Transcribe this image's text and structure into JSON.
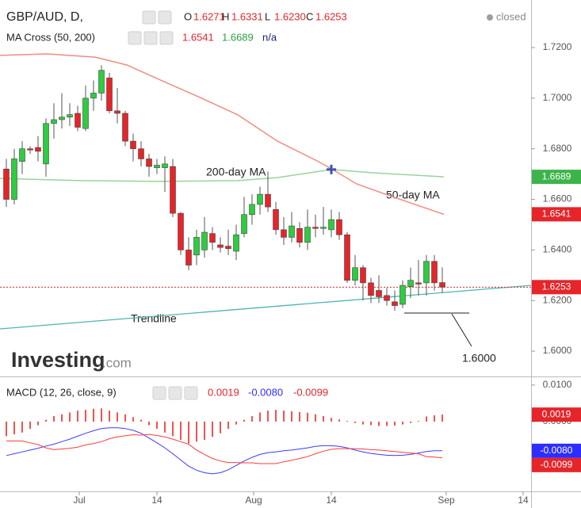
{
  "chart_data": [
    {
      "type": "candlestick",
      "title": "GBP/AUD, D,",
      "ohlc_labels": [
        "O",
        "H",
        "L",
        "C"
      ],
      "ohlc_values": [
        "1.6271",
        "1.6331",
        "1.6230",
        "1.6253"
      ],
      "status": "closed",
      "indicator": "MA Cross (50, 200)",
      "indicator_values": [
        "1.6541",
        "1.6689",
        "n/a"
      ],
      "logo": [
        "Investing",
        ".com"
      ],
      "up_color": "#2ecc40",
      "down_color": "#e5252a",
      "open": [
        1.672,
        1.66,
        1.675,
        1.68,
        1.6805,
        1.674,
        1.69,
        1.6915,
        1.6925,
        1.694,
        1.688,
        1.7,
        1.702,
        1.708,
        1.695,
        1.694,
        1.683,
        1.68,
        1.676,
        1.6725,
        1.6725,
        1.673,
        1.6545,
        1.64,
        1.638,
        1.64,
        1.6465,
        1.642,
        1.6415,
        1.6395,
        1.6465,
        1.654,
        1.658,
        1.662,
        1.656,
        1.648,
        1.645,
        1.6485,
        1.643,
        1.649,
        1.6485,
        1.648,
        1.652,
        1.646,
        1.628,
        1.633,
        1.627,
        1.624,
        1.622,
        1.6195,
        1.6185,
        1.6255,
        1.627,
        1.627,
        1.6355,
        1.6271
      ],
      "high": [
        1.676,
        1.68,
        1.683,
        1.681,
        1.685,
        1.692,
        1.698,
        1.702,
        1.698,
        1.697,
        1.705,
        1.707,
        1.713,
        1.71,
        1.704,
        1.695,
        1.686,
        1.683,
        1.678,
        1.676,
        1.677,
        1.676,
        1.655,
        1.645,
        1.648,
        1.653,
        1.649,
        1.645,
        1.648,
        1.65,
        1.661,
        1.662,
        1.665,
        1.671,
        1.659,
        1.653,
        1.655,
        1.651,
        1.656,
        1.654,
        1.657,
        1.656,
        1.655,
        1.647,
        1.638,
        1.634,
        1.629,
        1.63,
        1.625,
        1.624,
        1.628,
        1.633,
        1.636,
        1.638,
        1.638,
        1.6331
      ],
      "low": [
        1.657,
        1.658,
        1.67,
        1.678,
        1.675,
        1.669,
        1.684,
        1.688,
        1.689,
        1.687,
        1.687,
        1.695,
        1.699,
        1.694,
        1.69,
        1.681,
        1.675,
        1.673,
        1.669,
        1.67,
        1.663,
        1.653,
        1.638,
        1.632,
        1.634,
        1.637,
        1.64,
        1.639,
        1.638,
        1.636,
        1.645,
        1.65,
        1.654,
        1.655,
        1.646,
        1.642,
        1.643,
        1.641,
        1.64,
        1.645,
        1.646,
        1.645,
        1.644,
        1.627,
        1.626,
        1.62,
        1.619,
        1.619,
        1.618,
        1.616,
        1.617,
        1.621,
        1.622,
        1.622,
        1.624,
        1.623
      ],
      "close": [
        1.66,
        1.676,
        1.68,
        1.6795,
        1.679,
        1.69,
        1.6915,
        1.6925,
        1.6935,
        1.6885,
        1.7,
        1.702,
        1.711,
        1.695,
        1.694,
        1.683,
        1.68,
        1.676,
        1.673,
        1.6735,
        1.674,
        1.6545,
        1.64,
        1.634,
        1.645,
        1.647,
        1.643,
        1.641,
        1.6405,
        1.646,
        1.654,
        1.658,
        1.662,
        1.657,
        1.648,
        1.645,
        1.6495,
        1.643,
        1.649,
        1.6485,
        1.649,
        1.652,
        1.646,
        1.628,
        1.633,
        1.627,
        1.622,
        1.6215,
        1.62,
        1.618,
        1.626,
        1.628,
        1.6265,
        1.6355,
        1.627,
        1.6253
      ],
      "series": [
        {
          "name": "50-day MA",
          "color": "#f28b82",
          "x": [
            -0.8,
            5.2,
            11.2,
            15.2,
            19.2,
            24.2,
            29.2,
            34.2,
            39.2,
            41,
            44.2,
            49.2,
            55.2
          ],
          "values": [
            1.7169,
            1.7175,
            1.7162,
            1.7131,
            1.7075,
            1.7006,
            1.6934,
            1.683,
            1.6752,
            1.6721,
            1.6661,
            1.6605,
            1.6541
          ]
        },
        {
          "name": "200-day MA",
          "color": "#99d39b",
          "x": [
            -0.8,
            9.2,
            19.2,
            29.2,
            34.2,
            41,
            46.2,
            55.2
          ],
          "values": [
            1.6683,
            1.6674,
            1.6671,
            1.6674,
            1.6686,
            1.6718,
            1.6705,
            1.6689
          ]
        }
      ],
      "cross": {
        "x": 41,
        "value": 1.6718,
        "color": "#3f51b5"
      },
      "trendline": {
        "label": "Trendline",
        "color": "#4db6ac",
        "x": [
          -0.8,
          66.2
        ],
        "values": [
          1.6088,
          1.626
        ]
      },
      "annotation": "1.6000",
      "price_labels": [
        {
          "value": 1.6689,
          "label": "1.6689",
          "color": "#3cb44b"
        },
        {
          "value": 1.6541,
          "label": "1.6541",
          "color": "#e5252a"
        },
        {
          "value": 1.6253,
          "label": "1.6253",
          "color": "#e5252a"
        }
      ],
      "xlim": [
        -0.8,
        66.2
      ],
      "xticks": [
        {
          "value": 9.2,
          "label": "Jul"
        },
        {
          "value": 19,
          "label": "14"
        },
        {
          "value": 31.2,
          "label": "Aug"
        },
        {
          "value": 41,
          "label": "14"
        },
        {
          "value": 55.5,
          "label": "Sep"
        },
        {
          "value": 65.2,
          "label": "14"
        }
      ],
      "ylim": [
        1.59,
        1.7388
      ],
      "yticks": [
        {
          "value": 1.6,
          "label": "1.6000"
        },
        {
          "value": 1.62,
          "label": "1.6200"
        },
        {
          "value": 1.64,
          "label": "1.6400"
        },
        {
          "value": 1.66,
          "label": "1.6600"
        },
        {
          "value": 1.68,
          "label": "1.6800"
        },
        {
          "value": 1.7,
          "label": "1.7000"
        },
        {
          "value": 1.72,
          "label": "1.7200"
        }
      ]
    },
    {
      "type": "macd",
      "title": "MACD (12, 26, close, 9)",
      "header_values": [
        "0.0019",
        "-0.0080",
        "-0.0099"
      ],
      "histogram": {
        "color": "#ef5350",
        "values": [
          -0.004,
          -0.0035,
          -0.003,
          -0.002,
          -0.001,
          0.0005,
          0.0015,
          0.002,
          0.0025,
          0.003,
          0.0032,
          0.0035,
          0.0036,
          0.003,
          0.0025,
          0.002,
          0.0012,
          0.0005,
          -0.001,
          -0.002,
          -0.003,
          -0.004,
          -0.005,
          -0.006,
          -0.0055,
          -0.005,
          -0.0042,
          -0.0032,
          -0.002,
          -0.0008,
          0.0005,
          0.0015,
          0.0025,
          0.003,
          0.0032,
          0.003,
          0.0028,
          0.0026,
          0.0024,
          0.002,
          0.0015,
          0.001,
          0.0006,
          0.0002,
          -0.0004,
          -0.0008,
          -0.001,
          -0.0012,
          -0.0012,
          -0.0011,
          -0.0008,
          -0.0004,
          0.0002,
          0.0014,
          0.0017,
          0.0019
        ]
      },
      "series": [
        {
          "color": "#3b3bff",
          "values": [
            -0.0093,
            -0.0088,
            -0.0083,
            -0.0078,
            -0.0073,
            -0.0067,
            -0.0062,
            -0.0055,
            -0.0048,
            -0.004,
            -0.0032,
            -0.0025,
            -0.0019,
            -0.0017,
            -0.0017,
            -0.0019,
            -0.0024,
            -0.0032,
            -0.0045,
            -0.0058,
            -0.0072,
            -0.0088,
            -0.0105,
            -0.0122,
            -0.0133,
            -0.014,
            -0.0143,
            -0.014,
            -0.0132,
            -0.012,
            -0.0108,
            -0.0098,
            -0.009,
            -0.0085,
            -0.0083,
            -0.008,
            -0.0078,
            -0.0075,
            -0.0072,
            -0.0068,
            -0.0066,
            -0.0066,
            -0.0068,
            -0.0072,
            -0.0078,
            -0.0083,
            -0.0087,
            -0.009,
            -0.0092,
            -0.0093,
            -0.0092,
            -0.009,
            -0.0086,
            -0.0082,
            -0.008,
            -0.008
          ]
        },
        {
          "color": "#ff3b3b",
          "values": [
            -0.0053,
            -0.0053,
            -0.0053,
            -0.0058,
            -0.0063,
            -0.0072,
            -0.0077,
            -0.0075,
            -0.0073,
            -0.007,
            -0.0064,
            -0.006,
            -0.0055,
            -0.0047,
            -0.0042,
            -0.0039,
            -0.0036,
            -0.0037,
            -0.0035,
            -0.0038,
            -0.0042,
            -0.0048,
            -0.0055,
            -0.0062,
            -0.0078,
            -0.009,
            -0.0101,
            -0.0108,
            -0.0112,
            -0.0112,
            -0.0113,
            -0.0113,
            -0.0115,
            -0.0115,
            -0.0115,
            -0.011,
            -0.0106,
            -0.0101,
            -0.0096,
            -0.0088,
            -0.0081,
            -0.0076,
            -0.0074,
            -0.0074,
            -0.0074,
            -0.0075,
            -0.0077,
            -0.0078,
            -0.008,
            -0.0082,
            -0.0084,
            -0.0086,
            -0.0088,
            -0.0096,
            -0.0097,
            -0.0099
          ]
        }
      ],
      "price_labels": [
        {
          "value": 0.0019,
          "label": "0.0019",
          "color": "#e5252a"
        },
        {
          "value": -0.008,
          "label": "-0.0080",
          "color": "#2d2dff"
        },
        {
          "value": -0.0099,
          "label": "-0.0099",
          "color": "#e5252a"
        }
      ],
      "ylim": [
        -0.0191,
        0.0117
      ],
      "yticks": [
        {
          "value": 0,
          "label": "0.0000"
        },
        {
          "value": 0.01,
          "label": "0.0100"
        }
      ]
    }
  ]
}
